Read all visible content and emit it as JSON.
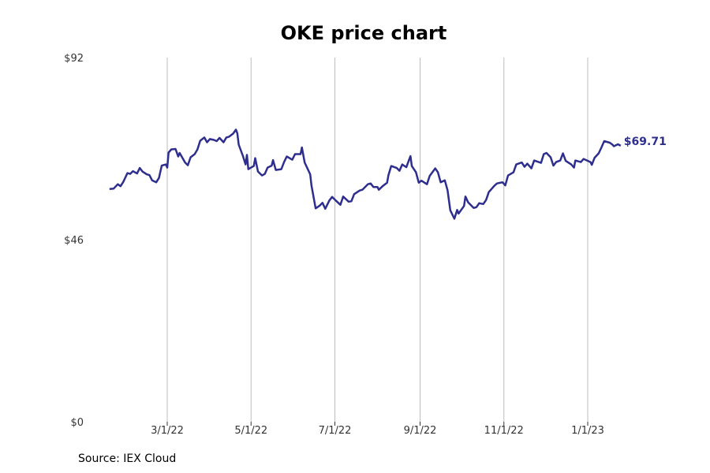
{
  "chart_data": {
    "type": "line",
    "title": "OKE price chart",
    "xlabel": "",
    "ylabel": "",
    "ylim": [
      0,
      92
    ],
    "y_ticks": [
      {
        "value": 0,
        "label": "$0"
      },
      {
        "value": 46,
        "label": "$46"
      },
      {
        "value": 92,
        "label": "$92"
      }
    ],
    "x_ticks": [
      {
        "date": "2022-03-01",
        "label": "3/1/22"
      },
      {
        "date": "2022-05-01",
        "label": "5/1/22"
      },
      {
        "date": "2022-07-01",
        "label": "7/1/22"
      },
      {
        "date": "2022-09-01",
        "label": "9/1/22"
      },
      {
        "date": "2022-11-01",
        "label": "11/1/22"
      },
      {
        "date": "2023-01-01",
        "label": "1/1/23"
      }
    ],
    "grid": "vertical",
    "line_color": "#2e2e8f",
    "series": [
      {
        "values": [
          [
            "2022-01-18",
            58.8
          ],
          [
            "2022-01-21",
            58.9
          ],
          [
            "2022-01-24",
            60.0
          ],
          [
            "2022-01-26",
            59.5
          ],
          [
            "2022-01-28",
            60.6
          ],
          [
            "2022-01-31",
            62.8
          ],
          [
            "2022-02-02",
            62.6
          ],
          [
            "2022-02-04",
            63.3
          ],
          [
            "2022-02-07",
            62.7
          ],
          [
            "2022-02-09",
            64.1
          ],
          [
            "2022-02-11",
            63.2
          ],
          [
            "2022-02-14",
            62.5
          ],
          [
            "2022-02-16",
            62.3
          ],
          [
            "2022-02-18",
            61.0
          ],
          [
            "2022-02-21",
            60.5
          ],
          [
            "2022-02-23",
            61.6
          ],
          [
            "2022-02-25",
            64.7
          ],
          [
            "2022-02-28",
            65.0
          ],
          [
            "2022-03-01",
            64.2
          ],
          [
            "2022-03-02",
            68.0
          ],
          [
            "2022-03-04",
            68.8
          ],
          [
            "2022-03-07",
            68.9
          ],
          [
            "2022-03-09",
            67.0
          ],
          [
            "2022-03-10",
            67.9
          ],
          [
            "2022-03-14",
            65.5
          ],
          [
            "2022-03-16",
            64.8
          ],
          [
            "2022-03-18",
            66.8
          ],
          [
            "2022-03-21",
            67.6
          ],
          [
            "2022-03-23",
            68.8
          ],
          [
            "2022-03-25",
            71.0
          ],
          [
            "2022-03-28",
            71.8
          ],
          [
            "2022-03-30",
            70.6
          ],
          [
            "2022-04-01",
            71.4
          ],
          [
            "2022-04-04",
            71.2
          ],
          [
            "2022-04-06",
            70.9
          ],
          [
            "2022-04-08",
            71.7
          ],
          [
            "2022-04-11",
            70.6
          ],
          [
            "2022-04-13",
            71.8
          ],
          [
            "2022-04-15",
            72.0
          ],
          [
            "2022-04-18",
            72.8
          ],
          [
            "2022-04-20",
            73.8
          ],
          [
            "2022-04-21",
            72.9
          ],
          [
            "2022-04-22",
            70.0
          ],
          [
            "2022-04-25",
            67.2
          ],
          [
            "2022-04-27",
            65.0
          ],
          [
            "2022-04-28",
            67.4
          ],
          [
            "2022-04-29",
            63.8
          ],
          [
            "2022-05-03",
            64.6
          ],
          [
            "2022-05-04",
            66.6
          ],
          [
            "2022-05-06",
            63.2
          ],
          [
            "2022-05-09",
            62.2
          ],
          [
            "2022-05-11",
            62.6
          ],
          [
            "2022-05-13",
            64.2
          ],
          [
            "2022-05-16",
            64.7
          ],
          [
            "2022-05-17",
            66.1
          ],
          [
            "2022-05-19",
            63.6
          ],
          [
            "2022-05-23",
            63.8
          ],
          [
            "2022-05-25",
            65.6
          ],
          [
            "2022-05-27",
            67.0
          ],
          [
            "2022-05-31",
            66.2
          ],
          [
            "2022-06-02",
            67.6
          ],
          [
            "2022-06-06",
            67.6
          ],
          [
            "2022-06-07",
            69.3
          ],
          [
            "2022-06-09",
            65.5
          ],
          [
            "2022-06-13",
            62.5
          ],
          [
            "2022-06-14",
            59.6
          ],
          [
            "2022-06-17",
            53.9
          ],
          [
            "2022-06-20",
            54.6
          ],
          [
            "2022-06-22",
            55.3
          ],
          [
            "2022-06-24",
            53.8
          ],
          [
            "2022-06-27",
            55.9
          ],
          [
            "2022-06-29",
            56.8
          ],
          [
            "2022-07-01",
            56.1
          ],
          [
            "2022-07-05",
            54.8
          ],
          [
            "2022-07-07",
            56.9
          ],
          [
            "2022-07-11",
            55.6
          ],
          [
            "2022-07-13",
            55.7
          ],
          [
            "2022-07-15",
            57.5
          ],
          [
            "2022-07-19",
            58.4
          ],
          [
            "2022-07-21",
            58.6
          ],
          [
            "2022-07-25",
            60.0
          ],
          [
            "2022-07-27",
            60.2
          ],
          [
            "2022-07-29",
            59.3
          ],
          [
            "2022-08-01",
            59.3
          ],
          [
            "2022-08-02",
            58.6
          ],
          [
            "2022-08-05",
            59.6
          ],
          [
            "2022-08-08",
            60.4
          ],
          [
            "2022-08-09",
            62.3
          ],
          [
            "2022-08-11",
            64.6
          ],
          [
            "2022-08-15",
            64.1
          ],
          [
            "2022-08-17",
            63.4
          ],
          [
            "2022-08-19",
            65.0
          ],
          [
            "2022-08-22",
            64.3
          ],
          [
            "2022-08-24",
            66.2
          ],
          [
            "2022-08-25",
            67.1
          ],
          [
            "2022-08-26",
            64.6
          ],
          [
            "2022-08-29",
            63.0
          ],
          [
            "2022-08-31",
            60.4
          ],
          [
            "2022-09-02",
            60.9
          ],
          [
            "2022-09-06",
            60.0
          ],
          [
            "2022-09-08",
            62.1
          ],
          [
            "2022-09-12",
            64.0
          ],
          [
            "2022-09-14",
            63.0
          ],
          [
            "2022-09-16",
            60.5
          ],
          [
            "2022-09-19",
            61.0
          ],
          [
            "2022-09-21",
            58.5
          ],
          [
            "2022-09-23",
            53.4
          ],
          [
            "2022-09-26",
            51.3
          ],
          [
            "2022-09-28",
            53.5
          ],
          [
            "2022-09-29",
            52.6
          ],
          [
            "2022-10-03",
            54.5
          ],
          [
            "2022-10-04",
            56.9
          ],
          [
            "2022-10-06",
            55.4
          ],
          [
            "2022-10-10",
            54.0
          ],
          [
            "2022-10-12",
            54.2
          ],
          [
            "2022-10-14",
            55.2
          ],
          [
            "2022-10-17",
            55.0
          ],
          [
            "2022-10-19",
            56.0
          ],
          [
            "2022-10-21",
            58.0
          ],
          [
            "2022-10-25",
            59.6
          ],
          [
            "2022-10-27",
            60.2
          ],
          [
            "2022-10-31",
            60.5
          ],
          [
            "2022-11-02",
            59.7
          ],
          [
            "2022-11-04",
            62.2
          ],
          [
            "2022-11-08",
            63.0
          ],
          [
            "2022-11-10",
            65.0
          ],
          [
            "2022-11-14",
            65.5
          ],
          [
            "2022-11-16",
            64.4
          ],
          [
            "2022-11-18",
            65.2
          ],
          [
            "2022-11-21",
            64.0
          ],
          [
            "2022-11-23",
            66.0
          ],
          [
            "2022-11-28",
            65.4
          ],
          [
            "2022-11-30",
            67.6
          ],
          [
            "2022-12-02",
            67.9
          ],
          [
            "2022-12-05",
            66.8
          ],
          [
            "2022-12-07",
            64.7
          ],
          [
            "2022-12-09",
            65.6
          ],
          [
            "2022-12-12",
            66.0
          ],
          [
            "2022-12-14",
            67.8
          ],
          [
            "2022-12-16",
            65.9
          ],
          [
            "2022-12-20",
            65.0
          ],
          [
            "2022-12-22",
            64.2
          ],
          [
            "2022-12-23",
            66.0
          ],
          [
            "2022-12-27",
            65.6
          ],
          [
            "2022-12-29",
            66.4
          ],
          [
            "2023-01-03",
            65.6
          ],
          [
            "2023-01-04",
            64.9
          ],
          [
            "2023-01-06",
            66.7
          ],
          [
            "2023-01-09",
            67.8
          ],
          [
            "2023-01-11",
            69.3
          ],
          [
            "2023-01-13",
            70.9
          ],
          [
            "2023-01-17",
            70.5
          ],
          [
            "2023-01-19",
            70.0
          ],
          [
            "2023-01-20",
            69.6
          ],
          [
            "2023-01-23",
            70.1
          ],
          [
            "2023-01-25",
            69.71
          ]
        ]
      }
    ],
    "last_value_label": "$69.71",
    "source": "Source: IEX Cloud"
  }
}
